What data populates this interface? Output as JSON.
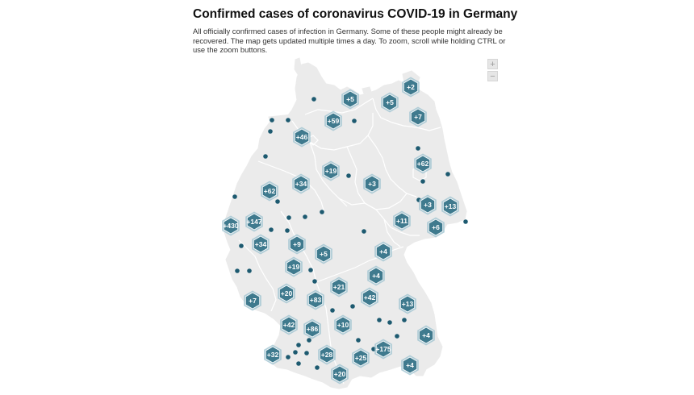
{
  "header": {
    "title": "Confirmed cases of coronavirus COVID-19 in Germany",
    "description": "All officially confirmed cases of infection in Germany. Some of these people might already be recovered. The map gets updated multiple times a day. To zoom, scroll while holding CTRL or use the zoom buttons."
  },
  "zoom": {
    "in_label": "+",
    "out_label": "−"
  },
  "colors": {
    "land": "#ebebeb",
    "border": "#ffffff",
    "hex_fill": "#3f7a8e",
    "hex_stroke": "#ffffff",
    "hex_halo": "#9cc2cf",
    "dot": "#1d5a70"
  },
  "map": {
    "country": "Germany",
    "clusters": [
      {
        "label": "+2"
      },
      {
        "label": "+5"
      },
      {
        "label": "+5"
      },
      {
        "label": "+7"
      },
      {
        "label": "+59"
      },
      {
        "label": "+46"
      },
      {
        "label": "+62"
      },
      {
        "label": "+19"
      },
      {
        "label": "+34"
      },
      {
        "label": "+3"
      },
      {
        "label": "+62"
      },
      {
        "label": "+3"
      },
      {
        "label": "+13"
      },
      {
        "label": "+430"
      },
      {
        "label": "+147"
      },
      {
        "label": "+11"
      },
      {
        "label": "+6"
      },
      {
        "label": "+34"
      },
      {
        "label": "+9"
      },
      {
        "label": "+5"
      },
      {
        "label": "+4"
      },
      {
        "label": "+19"
      },
      {
        "label": "+4"
      },
      {
        "label": "+21"
      },
      {
        "label": "+20"
      },
      {
        "label": "+83"
      },
      {
        "label": "+42"
      },
      {
        "label": "+7"
      },
      {
        "label": "+13"
      },
      {
        "label": "+42"
      },
      {
        "label": "+86"
      },
      {
        "label": "+10"
      },
      {
        "label": "+4"
      },
      {
        "label": "+175"
      },
      {
        "label": "+32"
      },
      {
        "label": "+28"
      },
      {
        "label": "+25"
      },
      {
        "label": "+4"
      },
      {
        "label": "+20"
      }
    ],
    "single_case_count": 40
  }
}
